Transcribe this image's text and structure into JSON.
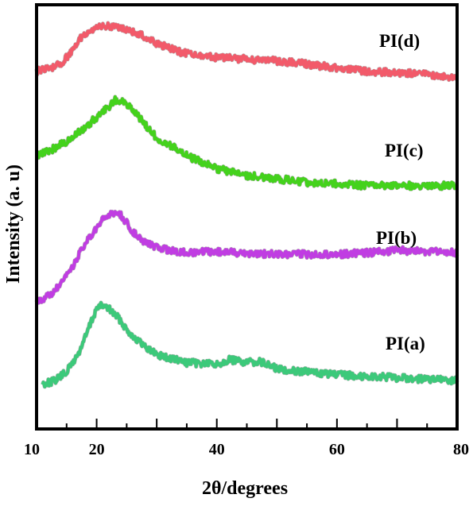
{
  "chart_data": {
    "type": "line",
    "xlabel": "2θ/degrees",
    "ylabel": "Intensity (a. u)",
    "xlim": [
      10,
      80
    ],
    "xticks": [
      10,
      20,
      40,
      60,
      80
    ],
    "series": [
      {
        "name": "PI(a)",
        "color": "#3cc97a",
        "x": [
          11,
          13,
          15,
          17,
          19,
          20,
          21,
          22,
          23,
          24,
          25,
          27,
          29,
          31,
          35,
          40,
          42,
          45,
          47,
          50,
          55,
          60,
          65,
          70,
          75,
          80
        ],
        "y": [
          0.02,
          0.04,
          0.1,
          0.22,
          0.42,
          0.52,
          0.54,
          0.52,
          0.48,
          0.44,
          0.38,
          0.3,
          0.24,
          0.2,
          0.16,
          0.15,
          0.18,
          0.16,
          0.17,
          0.12,
          0.1,
          0.08,
          0.07,
          0.06,
          0.05,
          0.04
        ]
      },
      {
        "name": "PI(b)",
        "color": "#c03de2",
        "x": [
          10,
          12,
          14,
          16,
          18,
          20,
          21,
          22,
          23,
          24,
          25,
          26,
          28,
          30,
          32,
          35,
          40,
          45,
          50,
          55,
          60,
          65,
          70,
          75,
          80
        ],
        "y": [
          0.02,
          0.06,
          0.14,
          0.28,
          0.44,
          0.56,
          0.62,
          0.66,
          0.68,
          0.66,
          0.6,
          0.54,
          0.46,
          0.42,
          0.4,
          0.38,
          0.39,
          0.38,
          0.37,
          0.37,
          0.37,
          0.38,
          0.4,
          0.39,
          0.38
        ]
      },
      {
        "name": "PI(c)",
        "color": "#44d21c",
        "x": [
          10,
          12,
          14,
          16,
          18,
          20,
          22,
          23,
          24,
          25,
          26,
          28,
          30,
          33,
          36,
          40,
          45,
          50,
          55,
          60,
          65,
          70,
          75,
          80
        ],
        "y": [
          0.2,
          0.22,
          0.26,
          0.3,
          0.36,
          0.42,
          0.48,
          0.52,
          0.52,
          0.5,
          0.46,
          0.38,
          0.3,
          0.24,
          0.18,
          0.12,
          0.08,
          0.06,
          0.04,
          0.03,
          0.02,
          0.02,
          0.02,
          0.02
        ]
      },
      {
        "name": "PI(d)",
        "color": "#f25a6a",
        "x": [
          10,
          12,
          14,
          16,
          17,
          18,
          20,
          22,
          24,
          26,
          28,
          30,
          35,
          40,
          45,
          50,
          55,
          60,
          65,
          70,
          75,
          80
        ],
        "y": [
          0.04,
          0.05,
          0.08,
          0.16,
          0.22,
          0.26,
          0.3,
          0.3,
          0.29,
          0.27,
          0.24,
          0.2,
          0.14,
          0.12,
          0.11,
          0.1,
          0.08,
          0.06,
          0.04,
          0.03,
          0.02,
          0.0
        ]
      }
    ]
  }
}
